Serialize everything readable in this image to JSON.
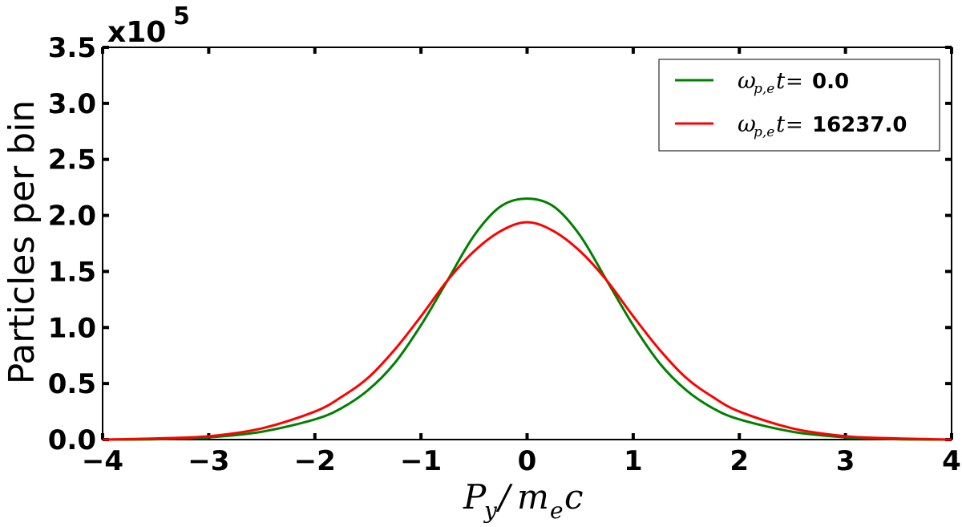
{
  "chart_data": {
    "type": "line",
    "title": "",
    "xlabel": "P_y/m_e c",
    "ylabel": "Particles per bin",
    "y_multiplier": "x10^5",
    "xlim": [
      -4,
      4
    ],
    "ylim": [
      0,
      3.5
    ],
    "xticks": [
      "−4",
      "−3",
      "−2",
      "−1",
      "0",
      "1",
      "2",
      "3",
      "4"
    ],
    "yticks": [
      "0.0",
      "0.5",
      "1.0",
      "1.5",
      "2.0",
      "2.5",
      "3.0",
      "3.5"
    ],
    "grid": false,
    "legend_position": "top-right",
    "series": [
      {
        "name": "ω_{p,e} t = 0.0",
        "legend_math": "ω",
        "legend_sub": "p,e",
        "legend_t": "t",
        "legend_eq": "=",
        "legend_value": "0.0",
        "color": "#008000",
        "x": [
          -4.0,
          -3.5,
          -3.0,
          -2.5,
          -2.0,
          -1.75,
          -1.5,
          -1.25,
          -1.0,
          -0.75,
          -0.5,
          -0.25,
          0.0,
          0.25,
          0.5,
          0.75,
          1.0,
          1.25,
          1.5,
          1.75,
          2.0,
          2.5,
          3.0,
          3.5,
          4.0
        ],
        "values": [
          0.0,
          0.003,
          0.02,
          0.07,
          0.18,
          0.28,
          0.44,
          0.68,
          1.02,
          1.42,
          1.82,
          2.08,
          2.15,
          2.08,
          1.82,
          1.42,
          1.02,
          0.68,
          0.44,
          0.28,
          0.18,
          0.07,
          0.02,
          0.003,
          0.0
        ]
      },
      {
        "name": "ω_{p,e} t = 16237.0",
        "legend_math": "ω",
        "legend_sub": "p,e",
        "legend_t": "t",
        "legend_eq": "=",
        "legend_value": "16237.0",
        "color": "#ff0000",
        "x": [
          -4.0,
          -3.5,
          -3.0,
          -2.5,
          -2.0,
          -1.75,
          -1.5,
          -1.25,
          -1.0,
          -0.75,
          -0.5,
          -0.25,
          0.0,
          0.25,
          0.5,
          0.75,
          1.0,
          1.25,
          1.5,
          1.75,
          2.0,
          2.5,
          3.0,
          3.5,
          4.0
        ],
        "values": [
          0.0,
          0.01,
          0.03,
          0.1,
          0.25,
          0.38,
          0.55,
          0.8,
          1.1,
          1.42,
          1.68,
          1.86,
          1.94,
          1.86,
          1.68,
          1.42,
          1.1,
          0.8,
          0.55,
          0.38,
          0.25,
          0.1,
          0.03,
          0.01,
          0.0
        ]
      }
    ]
  }
}
